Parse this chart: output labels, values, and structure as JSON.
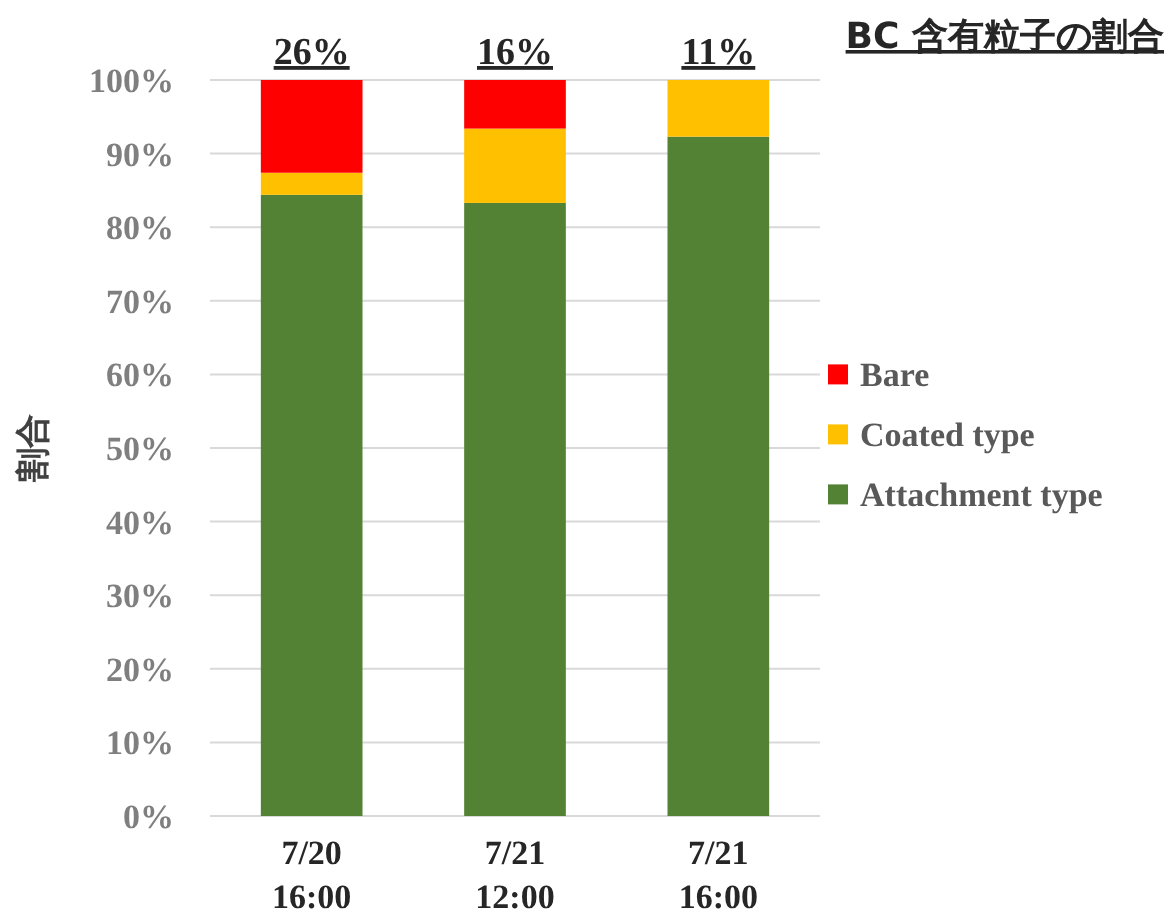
{
  "chart_data": {
    "type": "bar",
    "title": "BC 含有粒子の割合",
    "ylabel": "割合",
    "stacked": true,
    "categories": [
      "7/20\n16:00",
      "7/21\n12:00",
      "7/21\n16:00"
    ],
    "series": [
      {
        "name": "Attachment type",
        "color": "#548235",
        "values": [
          84.4,
          83.3,
          92.3
        ]
      },
      {
        "name": "Coated type",
        "color": "#ffc000",
        "values": [
          3.0,
          10.1,
          7.7
        ]
      },
      {
        "name": "Bare",
        "color": "#ff0000",
        "values": [
          12.6,
          6.6,
          0
        ]
      }
    ],
    "ylim": [
      0,
      100
    ],
    "yticks": [
      {
        "value": 0,
        "label": "0%"
      },
      {
        "value": 10,
        "label": "10%"
      },
      {
        "value": 20,
        "label": "20%"
      },
      {
        "value": 30,
        "label": "30%"
      },
      {
        "value": 40,
        "label": "40%"
      },
      {
        "value": 50,
        "label": "50%"
      },
      {
        "value": 60,
        "label": "60%"
      },
      {
        "value": 70,
        "label": "70%"
      },
      {
        "value": 80,
        "label": "80%"
      },
      {
        "value": 90,
        "label": "90%"
      },
      {
        "value": 100,
        "label": "100%"
      }
    ],
    "grid": "y",
    "legend": "right",
    "annotations": [
      {
        "text": "26%",
        "x": "7/20\n16:00",
        "y": 100
      },
      {
        "text": "16%",
        "x": "7/21\n12:00",
        "y": 100
      },
      {
        "text": "11%",
        "x": "7/21\n16:00",
        "y": 100
      }
    ]
  }
}
